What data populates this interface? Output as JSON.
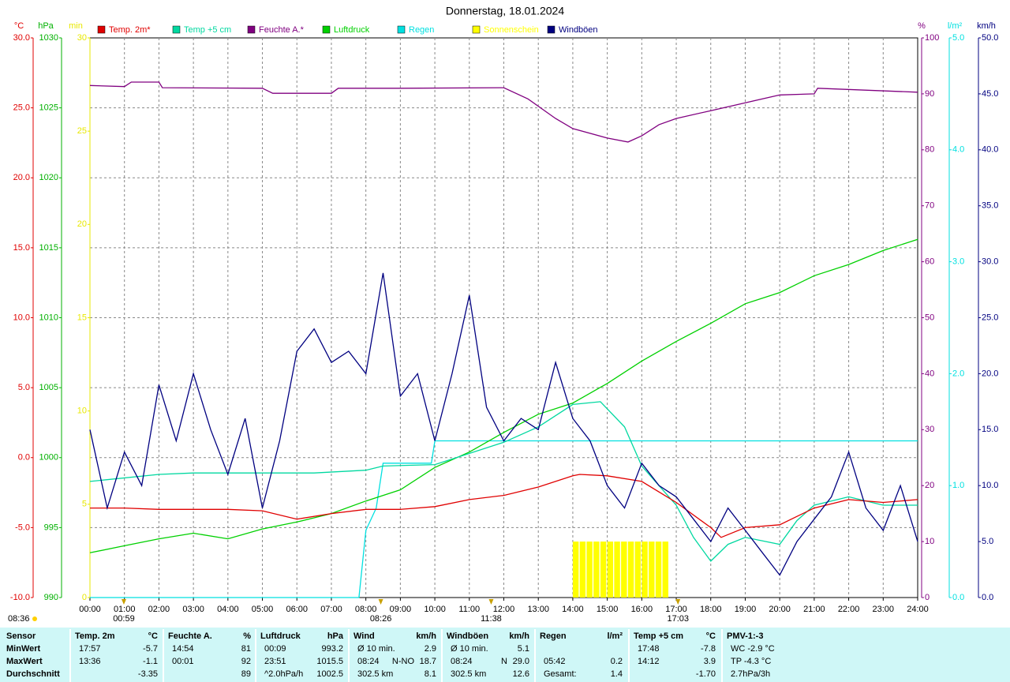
{
  "chart_data": {
    "type": "line",
    "title": "Donnerstag, 18.01.2024",
    "xlim": [
      0,
      24
    ],
    "xticks": [
      {
        "value": 0,
        "label": "00:00"
      },
      {
        "value": 1,
        "label": "01:00"
      },
      {
        "value": 2,
        "label": "02:00"
      },
      {
        "value": 3,
        "label": "03:00"
      },
      {
        "value": 4,
        "label": "04:00"
      },
      {
        "value": 5,
        "label": "05:00"
      },
      {
        "value": 6,
        "label": "06:00"
      },
      {
        "value": 7,
        "label": "07:00"
      },
      {
        "value": 8,
        "label": "08:00"
      },
      {
        "value": 9,
        "label": "09:00"
      },
      {
        "value": 10,
        "label": "10:00"
      },
      {
        "value": 11,
        "label": "11:00"
      },
      {
        "value": 12,
        "label": "12:00"
      },
      {
        "value": 13,
        "label": "13:00"
      },
      {
        "value": 14,
        "label": "14:00"
      },
      {
        "value": 15,
        "label": "15:00"
      },
      {
        "value": 16,
        "label": "16:00"
      },
      {
        "value": 17,
        "label": "17:00"
      },
      {
        "value": 18,
        "label": "18:00"
      },
      {
        "value": 19,
        "label": "19:00"
      },
      {
        "value": 20,
        "label": "20:00"
      },
      {
        "value": 21,
        "label": "21:00"
      },
      {
        "value": 22,
        "label": "22:00"
      },
      {
        "value": 23,
        "label": "23:00"
      },
      {
        "value": 24,
        "label": "24:00"
      }
    ],
    "grid": true,
    "axes": {
      "temp": {
        "label": "°C",
        "color": "#e00000",
        "ylim": [
          -10,
          30
        ],
        "yticks": [
          {
            "value": -10,
            "label": "-10.0"
          },
          {
            "value": -5,
            "label": "-5.0"
          },
          {
            "value": 0,
            "label": "0.0"
          },
          {
            "value": 5,
            "label": "5.0"
          },
          {
            "value": 10,
            "label": "10.0"
          },
          {
            "value": 15,
            "label": "15.0"
          },
          {
            "value": 20,
            "label": "20.0"
          },
          {
            "value": 25,
            "label": "25.0"
          },
          {
            "value": 30,
            "label": "30.0"
          }
        ]
      },
      "pressure": {
        "label": "hPa",
        "color": "#00b000",
        "ylim": [
          990,
          1030
        ],
        "yticks": [
          990,
          995,
          1000,
          1005,
          1010,
          1015,
          1020,
          1025,
          1030
        ]
      },
      "minutes": {
        "label": "min",
        "color": "#e8e800",
        "ylim": [
          0,
          30
        ],
        "yticks": [
          0,
          5,
          10,
          15,
          20,
          25,
          30
        ]
      },
      "humidity": {
        "label": "%",
        "color": "#800080",
        "ylim": [
          0,
          100
        ],
        "yticks": [
          0,
          10,
          20,
          30,
          40,
          50,
          60,
          70,
          80,
          90,
          100
        ]
      },
      "rain": {
        "label": "l/m²",
        "color": "#00e0e0",
        "ylim": [
          0,
          5
        ],
        "yticks": [
          {
            "value": 0,
            "label": "0.0"
          },
          {
            "value": 1,
            "label": "1.0"
          },
          {
            "value": 2,
            "label": "2.0"
          },
          {
            "value": 3,
            "label": "3.0"
          },
          {
            "value": 4,
            "label": "4.0"
          },
          {
            "value": 5,
            "label": "5.0"
          }
        ]
      },
      "wind": {
        "label": "km/h",
        "color": "#000080",
        "ylim": [
          0,
          50
        ],
        "yticks": [
          {
            "value": 0,
            "label": "0.0"
          },
          {
            "value": 5,
            "label": "5.0"
          },
          {
            "value": 10,
            "label": "10.0"
          },
          {
            "value": 15,
            "label": "15.0"
          },
          {
            "value": 20,
            "label": "20.0"
          },
          {
            "value": 25,
            "label": "25.0"
          },
          {
            "value": 30,
            "label": "30.0"
          },
          {
            "value": 35,
            "label": "35.0"
          },
          {
            "value": 40,
            "label": "40.0"
          },
          {
            "value": 45,
            "label": "45.0"
          },
          {
            "value": 50,
            "label": "50.0"
          }
        ]
      }
    },
    "series": [
      {
        "name": "Temp. 2m*",
        "color": "#e00000",
        "axis": "temp",
        "kind": "line",
        "x": [
          0,
          1,
          2,
          3,
          4,
          5,
          6,
          7,
          8,
          9,
          10,
          11,
          12,
          13,
          14,
          14.2,
          15,
          16,
          17,
          18,
          18.3,
          19,
          20,
          21,
          22,
          23,
          24
        ],
        "values": [
          -3.6,
          -3.6,
          -3.7,
          -3.7,
          -3.7,
          -3.8,
          -4.4,
          -4.0,
          -3.7,
          -3.7,
          -3.5,
          -3.0,
          -2.7,
          -2.1,
          -1.3,
          -1.2,
          -1.3,
          -1.7,
          -3.2,
          -5.0,
          -5.7,
          -5.0,
          -4.8,
          -3.6,
          -3.0,
          -3.2,
          -3.0
        ]
      },
      {
        "name": "Temp +5 cm",
        "color": "#00d8a0",
        "axis": "temp",
        "kind": "line",
        "x": [
          0,
          2,
          3,
          5,
          6.5,
          8,
          8.5,
          10,
          12,
          13,
          14,
          14.8,
          15.5,
          16,
          17,
          17.5,
          18,
          18.5,
          19,
          20,
          20.5,
          21,
          22,
          23,
          24
        ],
        "values": [
          -1.7,
          -1.2,
          -1.1,
          -1.1,
          -1.1,
          -0.9,
          -0.6,
          -0.5,
          1.1,
          2.2,
          3.8,
          4.0,
          2.2,
          -0.6,
          -3.4,
          -5.7,
          -7.4,
          -6.2,
          -5.7,
          -6.2,
          -4.5,
          -3.4,
          -2.8,
          -3.4,
          -3.4
        ]
      },
      {
        "name": "Feuchte A.*",
        "color": "#800080",
        "axis": "humidity",
        "kind": "line",
        "x": [
          0,
          1,
          1.2,
          2,
          2.1,
          5,
          5.3,
          7,
          7.2,
          9,
          12,
          12.7,
          13.5,
          14,
          15,
          15.6,
          16,
          16.5,
          17,
          18,
          19,
          20,
          21,
          21.1,
          24
        ],
        "values": [
          91.5,
          91.3,
          92.1,
          92.1,
          91.1,
          91.0,
          90.1,
          90.1,
          91.0,
          91.0,
          91.1,
          89.1,
          85.6,
          83.8,
          82.1,
          81.4,
          82.5,
          84.5,
          85.6,
          87.0,
          88.4,
          89.8,
          90.0,
          91.0,
          90.3
        ]
      },
      {
        "name": "Luftdruck",
        "color": "#00d000",
        "axis": "pressure",
        "kind": "line",
        "x": [
          0,
          1,
          2,
          3,
          4,
          5,
          6,
          7,
          8,
          9,
          10,
          11,
          12,
          13,
          14,
          15,
          16,
          17,
          18,
          19,
          20,
          21,
          22,
          23,
          24
        ],
        "values": [
          993.2,
          993.7,
          994.2,
          994.6,
          994.2,
          994.9,
          995.4,
          996.0,
          996.9,
          997.7,
          999.3,
          1000.4,
          1001.8,
          1003.1,
          1003.9,
          1005.3,
          1006.9,
          1008.3,
          1009.6,
          1011.0,
          1011.8,
          1013.0,
          1013.8,
          1014.8,
          1015.6
        ]
      },
      {
        "name": "Regen",
        "color": "#00e0e0",
        "axis": "rain",
        "kind": "line",
        "x": [
          0,
          7.8,
          8.0,
          8.3,
          8.5,
          9.9,
          10.0,
          24
        ],
        "values": [
          0,
          0,
          0.6,
          0.8,
          1.2,
          1.2,
          1.4,
          1.4
        ]
      },
      {
        "name": "Sonnenschein",
        "color": "#ffff00",
        "axis": "minutes",
        "kind": "bar",
        "x": [
          14.0,
          14.2,
          14.4,
          14.6,
          14.8,
          15.0,
          15.2,
          15.4,
          15.6,
          15.8,
          16.0,
          16.2,
          16.4,
          16.6
        ],
        "values": [
          3,
          3,
          3,
          3,
          3,
          3,
          3,
          3,
          3,
          3,
          3,
          3,
          3,
          3
        ]
      },
      {
        "name": "Windböen",
        "color": "#000080",
        "axis": "wind",
        "kind": "line",
        "x": [
          0,
          0.5,
          1,
          1.5,
          2,
          2.5,
          3,
          3.5,
          4,
          4.5,
          5,
          5.5,
          6,
          6.5,
          7,
          7.5,
          8,
          8.5,
          9,
          9.5,
          10,
          10.5,
          11,
          11.5,
          12,
          12.5,
          13,
          13.5,
          14,
          14.5,
          15,
          15.5,
          16,
          16.5,
          17,
          17.5,
          18,
          18.5,
          19,
          19.5,
          20,
          20.5,
          21,
          21.5,
          22,
          22.5,
          23,
          23.5,
          24
        ],
        "values": [
          15,
          8,
          13,
          10,
          19,
          14,
          20,
          15,
          11,
          16,
          8,
          14,
          22,
          24,
          21,
          22,
          20,
          29,
          18,
          20,
          14,
          20,
          27,
          17,
          14,
          16,
          15,
          21,
          16,
          14,
          10,
          8,
          12,
          10,
          9,
          7,
          5,
          8,
          6,
          4,
          2,
          5,
          7,
          9,
          13,
          8,
          6,
          10,
          5
        ]
      }
    ],
    "markers": [
      {
        "x": 0.983,
        "label": "00:59"
      },
      {
        "x": 8.433,
        "label": "08:26"
      },
      {
        "x": 11.633,
        "label": "11:38"
      },
      {
        "x": 17.05,
        "label": "17:03"
      }
    ],
    "sunshine_total": "08:36"
  },
  "table": {
    "header": [
      {
        "name": "Sensor"
      },
      {
        "name": "Temp. 2m",
        "unit": "°C"
      },
      {
        "name": "Feuchte A.",
        "unit": "%"
      },
      {
        "name": "Luftdruck",
        "unit": "hPa"
      },
      {
        "name": "Wind",
        "unit": "km/h"
      },
      {
        "name": "Windböen",
        "unit": "km/h"
      },
      {
        "name": "Regen",
        "unit": "l/m²"
      },
      {
        "name": "Temp +5 cm",
        "unit": "°C"
      },
      {
        "name": "PMV-1:-3"
      }
    ],
    "rows": [
      {
        "label": "MinWert",
        "cells": [
          {
            "left": "17:57",
            "right": "-5.7"
          },
          {
            "left": "14:54",
            "right": "81"
          },
          {
            "left": "00:09",
            "right": "993.2"
          },
          {
            "left": "Ø 10 min.",
            "right": "2.9"
          },
          {
            "left": "Ø 10 min.",
            "right": "5.1"
          },
          {},
          {
            "left": "17:48",
            "right": "-7.8"
          },
          {
            "left": "WC -2.9 °C"
          }
        ]
      },
      {
        "label": "MaxWert",
        "cells": [
          {
            "left": "13:36",
            "right": "-1.1"
          },
          {
            "left": "00:01",
            "right": "92"
          },
          {
            "left": "23:51",
            "right": "1015.5"
          },
          {
            "left": "08:24",
            "mid": "N-NO",
            "right": "18.7"
          },
          {
            "left": "08:24",
            "mid": "N",
            "right": "29.0"
          },
          {
            "left": "05:42",
            "right": "0.2"
          },
          {
            "left": "14:12",
            "right": "3.9"
          },
          {
            "left": "TP -4.3 °C"
          }
        ]
      },
      {
        "label": "Durchschnitt",
        "cells": [
          {
            "right": "-3.35"
          },
          {
            "right": "89"
          },
          {
            "left": "^2.0hPa/h",
            "right": "1002.5"
          },
          {
            "left": "302.5 km",
            "right": "8.1"
          },
          {
            "left": "302.5 km",
            "right": "12.6"
          },
          {
            "left": "Gesamt:",
            "right": "1.4"
          },
          {
            "right": "-1.70"
          },
          {
            "left": "2.7hPa/3h"
          }
        ]
      }
    ]
  }
}
